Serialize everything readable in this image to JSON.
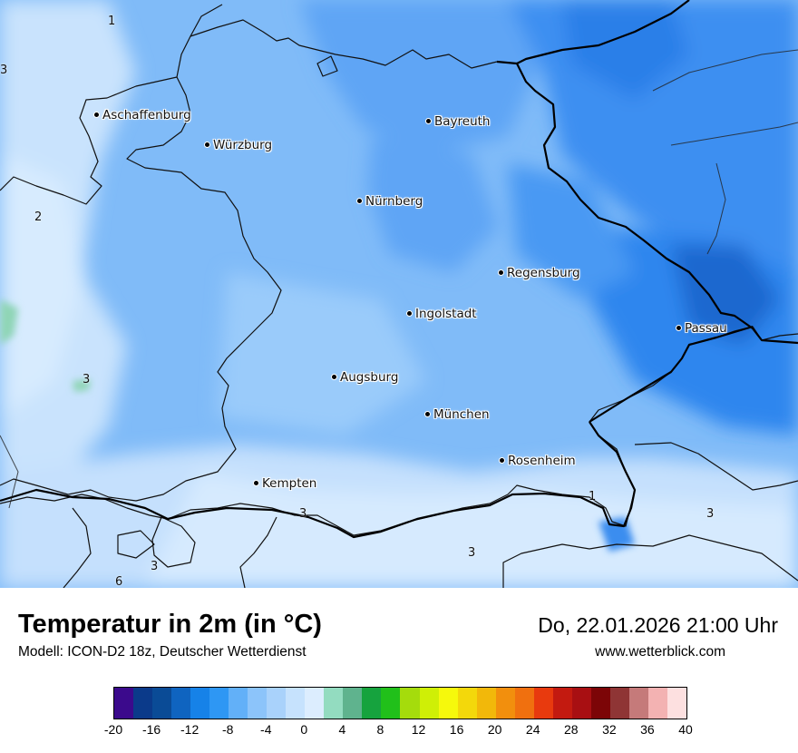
{
  "title": "Temperatur in 2m (in °C)",
  "model": "Modell: ICON-D2 18z, Deutscher Wetterdienst",
  "datetime": "Do, 22.01.2026 21:00 Uhr",
  "site": "www.wetterblick.com",
  "cities": [
    {
      "name": "Aschaffenburg"
    },
    {
      "name": "Bayreuth"
    },
    {
      "name": "Würzburg"
    },
    {
      "name": "Nürnberg"
    },
    {
      "name": "Regensburg"
    },
    {
      "name": "Ingolstadt"
    },
    {
      "name": "Passau"
    },
    {
      "name": "Augsburg"
    },
    {
      "name": "München"
    },
    {
      "name": "Rosenheim"
    },
    {
      "name": "Kempten"
    }
  ],
  "isolabels": [
    "1",
    "3",
    "2",
    "3",
    "3",
    "3",
    "3",
    "3",
    "6",
    "1"
  ],
  "legend": {
    "ticks": [
      "-20",
      "-16",
      "-12",
      "-8",
      "-4",
      "0",
      "4",
      "8",
      "12",
      "16",
      "20",
      "24",
      "28",
      "32",
      "36",
      "40"
    ],
    "colors": [
      "#3b0a8c",
      "#0b3a8a",
      "#0a4b96",
      "#0f64c0",
      "#1682e8",
      "#2e97f4",
      "#62b0f8",
      "#8cc4fa",
      "#a9d2fb",
      "#c6e2fd",
      "#dcedfe",
      "#93dcc0",
      "#5fb38e",
      "#16a33e",
      "#21c01a",
      "#a5dc0c",
      "#cfef06",
      "#f6f90c",
      "#f3d80b",
      "#f2b80a",
      "#f28f0d",
      "#f0700f",
      "#e83a0e",
      "#c31a10",
      "#a80f12",
      "#7c0507",
      "#8f3535",
      "#c57a7a",
      "#f3b2b2",
      "#fde0e0"
    ]
  }
}
